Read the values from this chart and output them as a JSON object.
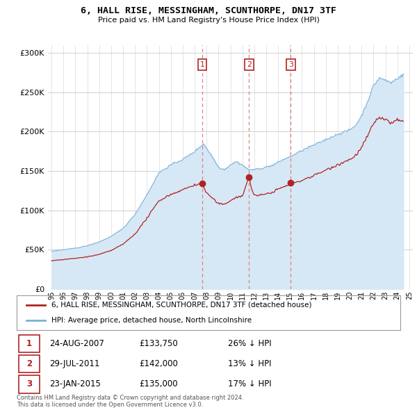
{
  "title": "6, HALL RISE, MESSINGHAM, SCUNTHORPE, DN17 3TF",
  "subtitle": "Price paid vs. HM Land Registry's House Price Index (HPI)",
  "ylim": [
    0,
    310000
  ],
  "yticks": [
    0,
    50000,
    100000,
    150000,
    200000,
    250000,
    300000
  ],
  "ytick_labels": [
    "£0",
    "£50K",
    "£100K",
    "£150K",
    "£200K",
    "£250K",
    "£300K"
  ],
  "hpi_color": "#7ab0d8",
  "hpi_fill_color": "#d6e8f5",
  "sold_color": "#b22222",
  "dashed_color": "#e08080",
  "grid_color": "#d0d0d0",
  "legend_label_sold": "6, HALL RISE, MESSINGHAM, SCUNTHORPE, DN17 3TF (detached house)",
  "legend_label_hpi": "HPI: Average price, detached house, North Lincolnshire",
  "sales": [
    {
      "date_num": 2007.65,
      "price": 133750,
      "label": "1"
    },
    {
      "date_num": 2011.57,
      "price": 142000,
      "label": "2"
    },
    {
      "date_num": 2015.06,
      "price": 135000,
      "label": "3"
    }
  ],
  "table_rows": [
    [
      "1",
      "24-AUG-2007",
      "£133,750",
      "26% ↓ HPI"
    ],
    [
      "2",
      "29-JUL-2011",
      "£142,000",
      "13% ↓ HPI"
    ],
    [
      "3",
      "23-JAN-2015",
      "£135,000",
      "17% ↓ HPI"
    ]
  ],
  "footnote": "Contains HM Land Registry data © Crown copyright and database right 2024.\nThis data is licensed under the Open Government Licence v3.0."
}
